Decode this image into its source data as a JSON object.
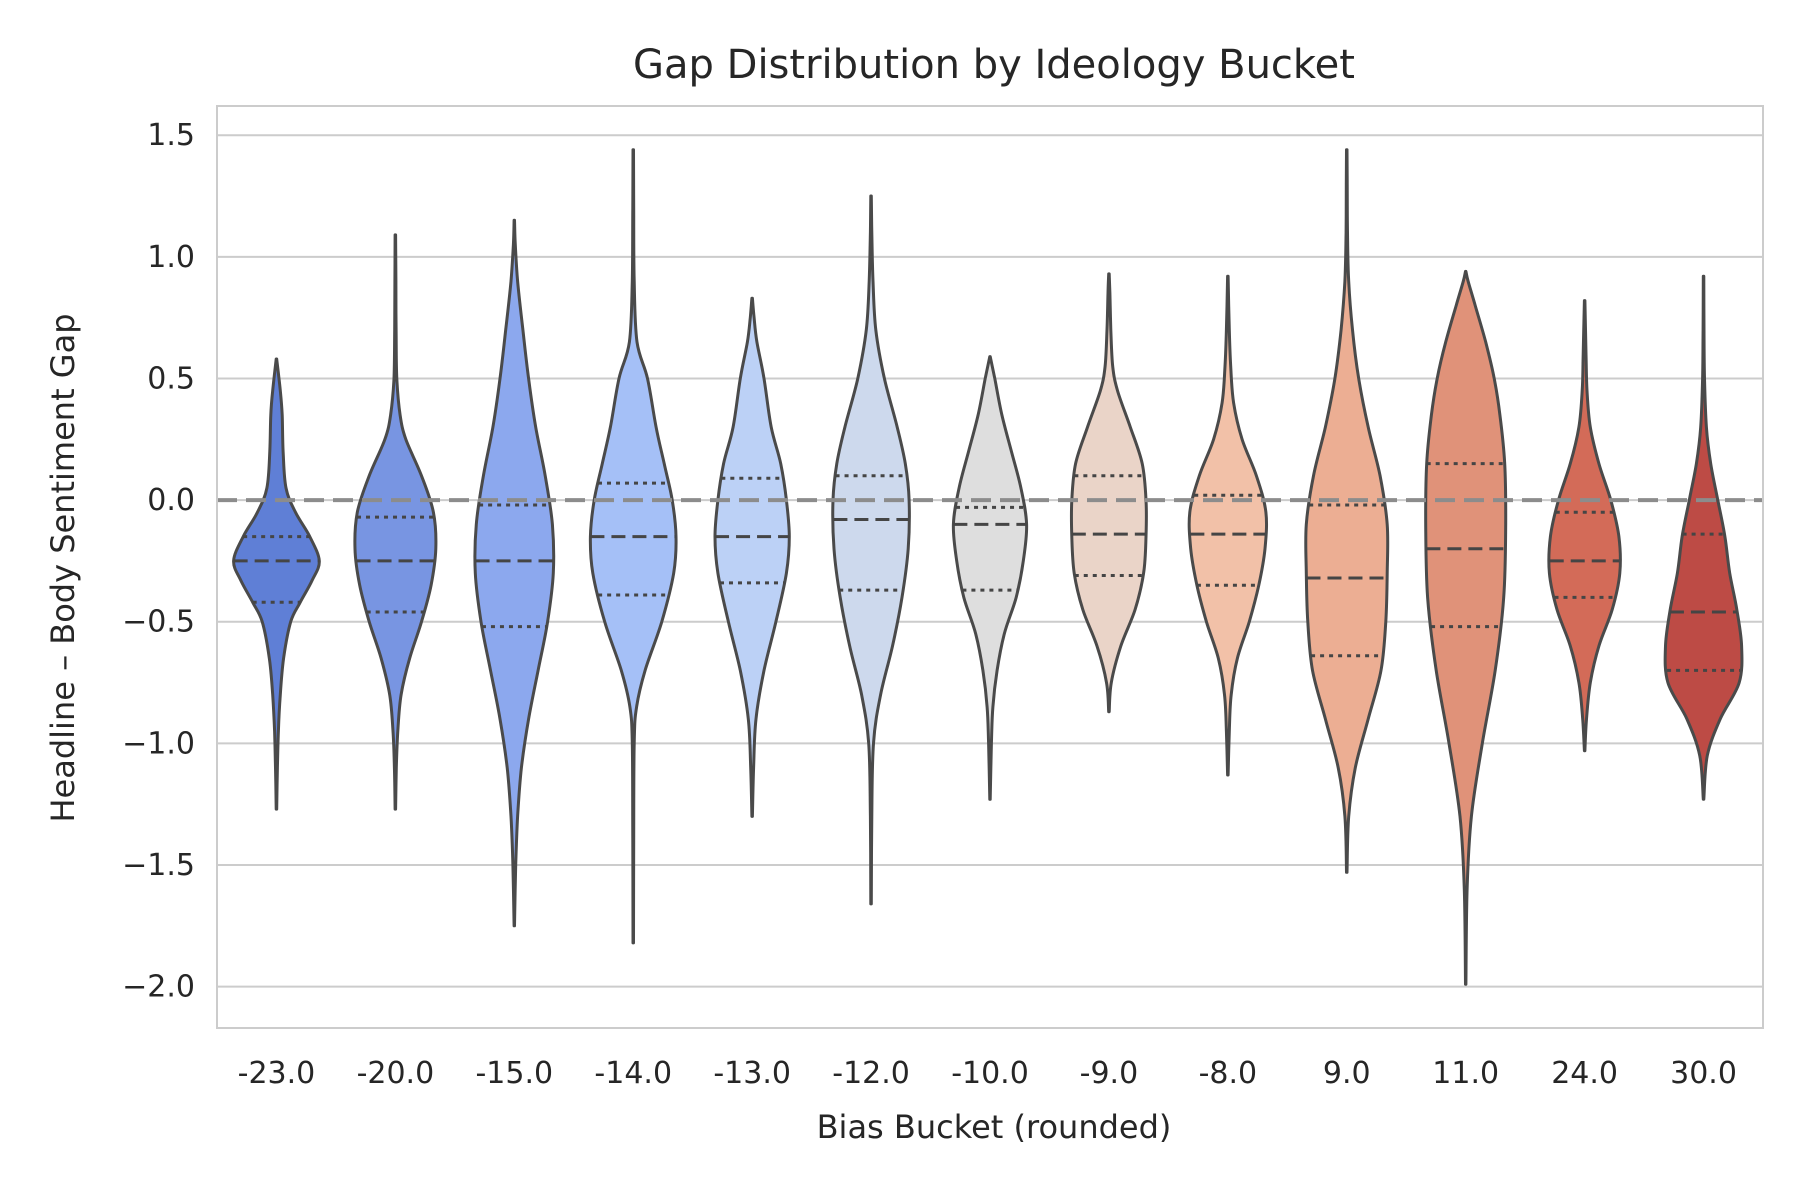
{
  "chart_data": {
    "type": "violin",
    "title": "Gap Distribution by Ideology Bucket",
    "xlabel": "Bias Bucket (rounded)",
    "ylabel": "Headline – Body Sentiment Gap",
    "ylim": [
      -2.17,
      1.62
    ],
    "yticks": [
      1.5,
      1.0,
      0.5,
      0.0,
      -0.5,
      -1.0,
      -1.5,
      -2.0
    ],
    "ytick_labels": [
      "1.5",
      "1.0",
      "0.5",
      "0.0",
      "−0.5",
      "−1.0",
      "−1.5",
      "−2.0"
    ],
    "grid": true,
    "reference_line": 0.0,
    "categories": [
      "-23.0",
      "-20.0",
      "-15.0",
      "-14.0",
      "-13.0",
      "-12.0",
      "-10.0",
      "-9.0",
      "-8.0",
      "9.0",
      "11.0",
      "24.0",
      "30.0"
    ],
    "colors": [
      "#5f7fd6",
      "#7895e2",
      "#8ca8ee",
      "#a5c0f7",
      "#bcd1f6",
      "#cdd9ed",
      "#dedede",
      "#ead4c8",
      "#f2c1a8",
      "#ecae93",
      "#e09279",
      "#d36b58",
      "#bd4b45"
    ],
    "series": [
      {
        "category": "-23.0",
        "min": -1.27,
        "max": 0.58,
        "q1": -0.42,
        "median": -0.25,
        "q3": -0.15,
        "density": [
          [
            -1.27,
            0.005
          ],
          [
            -1.1,
            0.02
          ],
          [
            -0.95,
            0.04
          ],
          [
            -0.8,
            0.08
          ],
          [
            -0.65,
            0.15
          ],
          [
            -0.5,
            0.3
          ],
          [
            -0.42,
            0.5
          ],
          [
            -0.33,
            0.75
          ],
          [
            -0.25,
            0.9
          ],
          [
            -0.15,
            0.7
          ],
          [
            -0.05,
            0.4
          ],
          [
            0.05,
            0.2
          ],
          [
            0.2,
            0.14
          ],
          [
            0.35,
            0.12
          ],
          [
            0.45,
            0.08
          ],
          [
            0.58,
            0.005
          ]
        ]
      },
      {
        "category": "-20.0",
        "min": -1.27,
        "max": 1.09,
        "q1": -0.46,
        "median": -0.25,
        "q3": -0.07,
        "density": [
          [
            -1.27,
            0.005
          ],
          [
            -1.1,
            0.02
          ],
          [
            -0.95,
            0.05
          ],
          [
            -0.8,
            0.12
          ],
          [
            -0.65,
            0.3
          ],
          [
            -0.5,
            0.55
          ],
          [
            -0.35,
            0.75
          ],
          [
            -0.2,
            0.85
          ],
          [
            -0.05,
            0.8
          ],
          [
            0.1,
            0.55
          ],
          [
            0.25,
            0.22
          ],
          [
            0.35,
            0.1
          ],
          [
            0.5,
            0.03
          ],
          [
            0.7,
            0.015
          ],
          [
            0.9,
            0.01
          ],
          [
            1.09,
            0.005
          ]
        ]
      },
      {
        "category": "-15.0",
        "min": -1.75,
        "max": 1.15,
        "q1": -0.52,
        "median": -0.25,
        "q3": -0.02,
        "density": [
          [
            -1.75,
            0.005
          ],
          [
            -1.5,
            0.03
          ],
          [
            -1.3,
            0.07
          ],
          [
            -1.1,
            0.15
          ],
          [
            -0.9,
            0.3
          ],
          [
            -0.7,
            0.5
          ],
          [
            -0.5,
            0.7
          ],
          [
            -0.3,
            0.82
          ],
          [
            -0.1,
            0.8
          ],
          [
            0.1,
            0.65
          ],
          [
            0.3,
            0.45
          ],
          [
            0.5,
            0.3
          ],
          [
            0.7,
            0.18
          ],
          [
            0.9,
            0.07
          ],
          [
            1.05,
            0.02
          ],
          [
            1.15,
            0.005
          ]
        ]
      },
      {
        "category": "-14.0",
        "min": -1.82,
        "max": 1.44,
        "q1": -0.39,
        "median": -0.15,
        "q3": 0.07,
        "density": [
          [
            -1.82,
            0.005
          ],
          [
            -1.4,
            0.01
          ],
          [
            -1.0,
            0.02
          ],
          [
            -0.85,
            0.07
          ],
          [
            -0.7,
            0.25
          ],
          [
            -0.5,
            0.6
          ],
          [
            -0.3,
            0.85
          ],
          [
            -0.15,
            0.9
          ],
          [
            0.0,
            0.82
          ],
          [
            0.15,
            0.65
          ],
          [
            0.3,
            0.48
          ],
          [
            0.5,
            0.3
          ],
          [
            0.65,
            0.08
          ],
          [
            0.9,
            0.02
          ],
          [
            1.2,
            0.01
          ],
          [
            1.44,
            0.005
          ]
        ]
      },
      {
        "category": "-13.0",
        "min": -1.3,
        "max": 0.83,
        "q1": -0.34,
        "median": -0.15,
        "q3": 0.09,
        "density": [
          [
            -1.3,
            0.005
          ],
          [
            -1.1,
            0.03
          ],
          [
            -0.9,
            0.08
          ],
          [
            -0.7,
            0.25
          ],
          [
            -0.5,
            0.5
          ],
          [
            -0.3,
            0.72
          ],
          [
            -0.15,
            0.78
          ],
          [
            0.0,
            0.72
          ],
          [
            0.15,
            0.6
          ],
          [
            0.3,
            0.4
          ],
          [
            0.5,
            0.25
          ],
          [
            0.65,
            0.1
          ],
          [
            0.75,
            0.04
          ],
          [
            0.83,
            0.005
          ]
        ]
      },
      {
        "category": "-12.0",
        "min": -1.66,
        "max": 1.25,
        "q1": -0.37,
        "median": -0.08,
        "q3": 0.1,
        "density": [
          [
            -1.66,
            0.005
          ],
          [
            -1.3,
            0.015
          ],
          [
            -1.0,
            0.05
          ],
          [
            -0.8,
            0.2
          ],
          [
            -0.6,
            0.45
          ],
          [
            -0.4,
            0.65
          ],
          [
            -0.2,
            0.78
          ],
          [
            0.0,
            0.8
          ],
          [
            0.15,
            0.72
          ],
          [
            0.3,
            0.55
          ],
          [
            0.5,
            0.28
          ],
          [
            0.7,
            0.1
          ],
          [
            0.9,
            0.04
          ],
          [
            1.1,
            0.015
          ],
          [
            1.25,
            0.005
          ]
        ]
      },
      {
        "category": "-10.0",
        "min": -1.23,
        "max": 0.59,
        "q1": -0.37,
        "median": -0.1,
        "q3": -0.03,
        "density": [
          [
            -1.23,
            0.005
          ],
          [
            -1.0,
            0.03
          ],
          [
            -0.85,
            0.06
          ],
          [
            -0.7,
            0.15
          ],
          [
            -0.55,
            0.3
          ],
          [
            -0.4,
            0.55
          ],
          [
            -0.25,
            0.7
          ],
          [
            -0.1,
            0.77
          ],
          [
            0.05,
            0.65
          ],
          [
            0.2,
            0.45
          ],
          [
            0.35,
            0.25
          ],
          [
            0.5,
            0.1
          ],
          [
            0.59,
            0.005
          ]
        ]
      },
      {
        "category": "-9.0",
        "min": -0.87,
        "max": 0.93,
        "q1": -0.31,
        "median": -0.14,
        "q3": 0.1,
        "density": [
          [
            -0.87,
            0.005
          ],
          [
            -0.75,
            0.05
          ],
          [
            -0.6,
            0.25
          ],
          [
            -0.45,
            0.55
          ],
          [
            -0.3,
            0.73
          ],
          [
            -0.15,
            0.78
          ],
          [
            0.0,
            0.78
          ],
          [
            0.15,
            0.7
          ],
          [
            0.3,
            0.45
          ],
          [
            0.45,
            0.18
          ],
          [
            0.55,
            0.08
          ],
          [
            0.7,
            0.04
          ],
          [
            0.85,
            0.02
          ],
          [
            0.93,
            0.005
          ]
        ]
      },
      {
        "category": "-8.0",
        "min": -1.13,
        "max": 0.92,
        "q1": -0.35,
        "median": -0.14,
        "q3": 0.02,
        "density": [
          [
            -1.13,
            0.005
          ],
          [
            -0.95,
            0.03
          ],
          [
            -0.8,
            0.07
          ],
          [
            -0.65,
            0.2
          ],
          [
            -0.5,
            0.45
          ],
          [
            -0.35,
            0.65
          ],
          [
            -0.2,
            0.78
          ],
          [
            -0.05,
            0.8
          ],
          [
            0.1,
            0.6
          ],
          [
            0.25,
            0.3
          ],
          [
            0.4,
            0.12
          ],
          [
            0.55,
            0.06
          ],
          [
            0.7,
            0.03
          ],
          [
            0.92,
            0.005
          ]
        ]
      },
      {
        "category": "9.0",
        "min": -1.53,
        "max": 1.44,
        "q1": -0.64,
        "median": -0.32,
        "q3": -0.02,
        "density": [
          [
            -1.53,
            0.005
          ],
          [
            -1.3,
            0.04
          ],
          [
            -1.1,
            0.18
          ],
          [
            -0.9,
            0.45
          ],
          [
            -0.7,
            0.72
          ],
          [
            -0.5,
            0.82
          ],
          [
            -0.3,
            0.85
          ],
          [
            -0.1,
            0.85
          ],
          [
            0.1,
            0.7
          ],
          [
            0.3,
            0.45
          ],
          [
            0.5,
            0.25
          ],
          [
            0.7,
            0.12
          ],
          [
            0.9,
            0.04
          ],
          [
            1.1,
            0.015
          ],
          [
            1.3,
            0.01
          ],
          [
            1.44,
            0.005
          ]
        ]
      },
      {
        "category": "11.0",
        "min": -1.99,
        "max": 0.94,
        "q1": -0.52,
        "median": -0.2,
        "q3": 0.15,
        "density": [
          [
            -1.99,
            0.005
          ],
          [
            -1.6,
            0.03
          ],
          [
            -1.3,
            0.12
          ],
          [
            -1.0,
            0.35
          ],
          [
            -0.7,
            0.62
          ],
          [
            -0.4,
            0.8
          ],
          [
            -0.1,
            0.84
          ],
          [
            0.15,
            0.82
          ],
          [
            0.35,
            0.72
          ],
          [
            0.5,
            0.6
          ],
          [
            0.65,
            0.42
          ],
          [
            0.8,
            0.2
          ],
          [
            0.9,
            0.05
          ],
          [
            0.94,
            0.005
          ]
        ]
      },
      {
        "category": "24.0",
        "min": -1.03,
        "max": 0.82,
        "q1": -0.4,
        "median": -0.25,
        "q3": -0.05,
        "density": [
          [
            -1.03,
            0.005
          ],
          [
            -0.9,
            0.04
          ],
          [
            -0.75,
            0.12
          ],
          [
            -0.6,
            0.3
          ],
          [
            -0.45,
            0.58
          ],
          [
            -0.3,
            0.74
          ],
          [
            -0.15,
            0.72
          ],
          [
            0.0,
            0.55
          ],
          [
            0.15,
            0.3
          ],
          [
            0.3,
            0.12
          ],
          [
            0.45,
            0.05
          ],
          [
            0.6,
            0.03
          ],
          [
            0.82,
            0.005
          ]
        ]
      },
      {
        "category": "30.0",
        "min": -1.23,
        "max": 0.92,
        "q1": -0.7,
        "median": -0.46,
        "q3": -0.14,
        "density": [
          [
            -1.23,
            0.005
          ],
          [
            -1.05,
            0.08
          ],
          [
            -0.9,
            0.35
          ],
          [
            -0.75,
            0.75
          ],
          [
            -0.6,
            0.8
          ],
          [
            -0.45,
            0.7
          ],
          [
            -0.3,
            0.55
          ],
          [
            -0.15,
            0.45
          ],
          [
            0.0,
            0.3
          ],
          [
            0.15,
            0.15
          ],
          [
            0.3,
            0.06
          ],
          [
            0.5,
            0.02
          ],
          [
            0.7,
            0.01
          ],
          [
            0.92,
            0.005
          ]
        ]
      }
    ]
  }
}
